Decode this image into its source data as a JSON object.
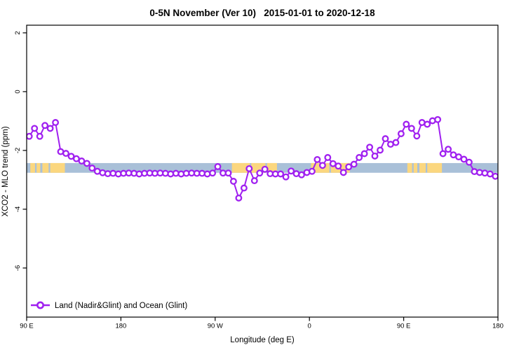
{
  "chart_data": {
    "type": "line",
    "title": "0-5N November (Ver 10)   2015-01-01 to 2020-12-18",
    "xlabel": "Longitude (deg E)",
    "ylabel": "XCO2 - MLO trend (ppm)",
    "xlim": [
      90,
      540
    ],
    "ylim": [
      -7.67,
      2.26
    ],
    "grid": false,
    "x_ticks": [
      {
        "lon": 90,
        "label": "90 E"
      },
      {
        "lon": 180,
        "label": "180"
      },
      {
        "lon": 270,
        "label": "90 W"
      },
      {
        "lon": 360,
        "label": "0"
      },
      {
        "lon": 450,
        "label": "90 E"
      },
      {
        "lon": 540,
        "label": "180"
      }
    ],
    "y_ticks": [
      {
        "value": 2,
        "label": "2"
      },
      {
        "value": 0,
        "label": "0"
      },
      {
        "value": -2,
        "label": "-2"
      },
      {
        "value": -4,
        "label": "-4"
      },
      {
        "value": -6,
        "label": "-6"
      }
    ],
    "legend": {
      "label": "Land (Nadir&Glint) and Ocean (Glint)",
      "position": "bottom-left"
    },
    "map_band": {
      "description": "0-5N latitude strip map: ocean blue with land in tan",
      "ocean_color": "#A9C0D8",
      "land_color": "#FBD77F",
      "value_range": [
        -2.43,
        -2.76
      ],
      "land_segments_lon": [
        [
          93.5,
          98
        ],
        [
          99.5,
          103
        ],
        [
          105,
          111
        ],
        [
          112.5,
          126.5
        ],
        [
          286,
          303
        ],
        [
          304.5,
          318
        ],
        [
          319.5,
          329
        ],
        [
          361.5,
          379
        ],
        [
          380.5,
          398.5
        ],
        [
          453.5,
          458
        ],
        [
          459.5,
          463
        ],
        [
          465,
          471
        ],
        [
          472.5,
          486.5
        ]
      ]
    },
    "series": [
      {
        "name": "Land (Nadir&Glint) and Ocean (Glint)",
        "color": "#A020F0",
        "marker": "open-circle",
        "marker_fill": "#FFFFFF",
        "x": [
          92.5,
          97.5,
          102.5,
          107.5,
          112.5,
          117.5,
          122.5,
          127.5,
          132.5,
          137.5,
          142.5,
          147.5,
          152.5,
          157.5,
          162.5,
          167.5,
          172.5,
          177.5,
          182.5,
          187.5,
          192.5,
          197.5,
          202.5,
          207.5,
          212.5,
          217.5,
          222.5,
          227.5,
          232.5,
          237.5,
          242.5,
          247.5,
          252.5,
          257.5,
          262.5,
          267.5,
          272.5,
          277.5,
          282.5,
          287.5,
          292.5,
          297.5,
          302.5,
          307.5,
          312.5,
          317.5,
          322.5,
          327.5,
          332.5,
          337.5,
          342.5,
          347.5,
          352.5,
          357.5,
          362.5,
          367.5,
          372.5,
          377.5,
          382.5,
          387.5,
          392.5,
          397.5,
          402.5,
          407.5,
          412.5,
          417.5,
          422.5,
          427.5,
          432.5,
          437.5,
          442.5,
          447.5,
          452.5,
          457.5,
          462.5,
          467.5,
          472.5,
          477.5,
          482.5,
          487.5,
          492.5,
          497.5,
          502.5,
          507.5,
          512.5,
          517.5,
          522.5,
          527.5,
          532.5,
          537.5
        ],
        "y": [
          -1.52,
          -1.25,
          -1.52,
          -1.15,
          -1.25,
          -1.05,
          -2.04,
          -2.1,
          -2.2,
          -2.28,
          -2.36,
          -2.44,
          -2.6,
          -2.71,
          -2.76,
          -2.79,
          -2.78,
          -2.8,
          -2.78,
          -2.77,
          -2.78,
          -2.8,
          -2.78,
          -2.77,
          -2.78,
          -2.77,
          -2.78,
          -2.8,
          -2.78,
          -2.8,
          -2.78,
          -2.77,
          -2.78,
          -2.78,
          -2.8,
          -2.77,
          -2.55,
          -2.77,
          -2.77,
          -3.05,
          -3.62,
          -3.28,
          -2.62,
          -3.03,
          -2.77,
          -2.64,
          -2.79,
          -2.8,
          -2.8,
          -2.9,
          -2.7,
          -2.79,
          -2.83,
          -2.75,
          -2.71,
          -2.31,
          -2.51,
          -2.24,
          -2.45,
          -2.53,
          -2.75,
          -2.56,
          -2.47,
          -2.24,
          -2.11,
          -1.89,
          -2.19,
          -1.99,
          -1.6,
          -1.79,
          -1.73,
          -1.43,
          -1.11,
          -1.25,
          -1.51,
          -1.05,
          -1.11,
          -0.99,
          -0.95,
          -2.11,
          -1.96,
          -2.15,
          -2.22,
          -2.3,
          -2.4,
          -2.72,
          -2.75,
          -2.77,
          -2.8,
          -2.88
        ]
      }
    ]
  },
  "colors": {
    "axis": "#000000",
    "background": "#FFFFFF",
    "series_purple": "#A020F0",
    "band_ocean": "#A9C0D8",
    "band_land": "#FBD77F"
  }
}
